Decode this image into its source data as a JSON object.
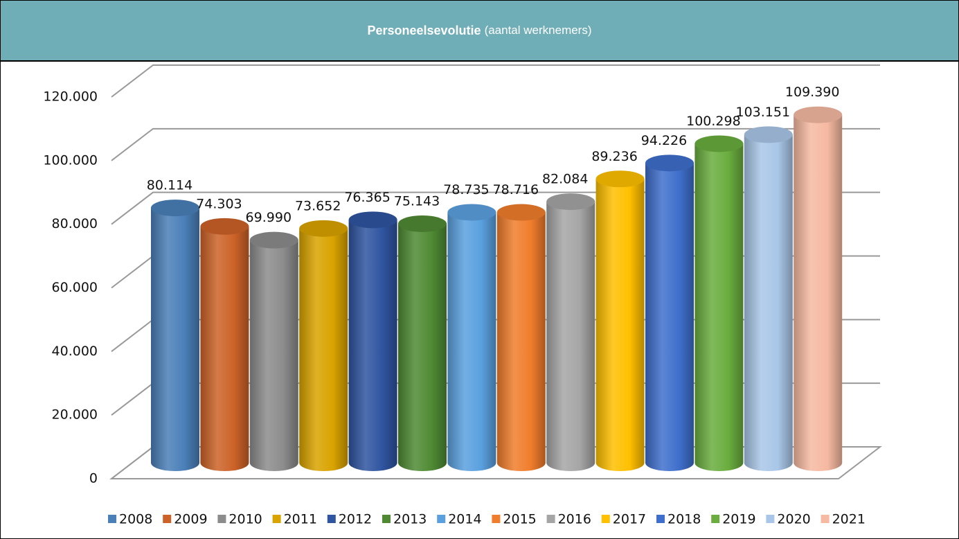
{
  "chart_data": {
    "type": "bar3d",
    "title": "Personeelsevolutie",
    "subtitle": "(aantal werknemers)",
    "ylim": [
      0,
      120000
    ],
    "yticks": [
      0,
      {
        "value": 20000,
        "label": "20.000"
      },
      {
        "value": 40000,
        "label": "40.000"
      },
      {
        "value": 60000,
        "label": "60.000"
      },
      {
        "value": 80000,
        "label": "80.000"
      },
      {
        "value": 100000,
        "label": "100.000"
      },
      {
        "value": 120000,
        "label": "120.000"
      }
    ],
    "grid": true,
    "legend": "bottom",
    "series": [
      {
        "name": "2008",
        "color": "#4a7fb8",
        "values": [
          80114
        ],
        "value_labels": [
          "80.114"
        ]
      },
      {
        "name": "2009",
        "color": "#cc6228",
        "values": [
          74303
        ],
        "value_labels": [
          "74.303"
        ]
      },
      {
        "name": "2010",
        "color": "#8c8c8c",
        "values": [
          69990
        ],
        "value_labels": [
          "69.990"
        ]
      },
      {
        "name": "2011",
        "color": "#d9a300",
        "values": [
          73652
        ],
        "value_labels": [
          "73.652"
        ]
      },
      {
        "name": "2012",
        "color": "#2f54a0",
        "values": [
          76365
        ],
        "value_labels": [
          "76.365"
        ]
      },
      {
        "name": "2013",
        "color": "#4f8a33",
        "values": [
          75143
        ],
        "value_labels": [
          "75.143"
        ]
      },
      {
        "name": "2014",
        "color": "#5aa0df",
        "values": [
          78735
        ],
        "value_labels": [
          "78.735"
        ]
      },
      {
        "name": "2015",
        "color": "#f07d2c",
        "values": [
          78716
        ],
        "value_labels": [
          "78.716"
        ]
      },
      {
        "name": "2016",
        "color": "#a5a5a5",
        "values": [
          82084
        ],
        "value_labels": [
          "82.084"
        ]
      },
      {
        "name": "2017",
        "color": "#ffc000",
        "values": [
          89236
        ],
        "value_labels": [
          "89.236"
        ]
      },
      {
        "name": "2018",
        "color": "#3f6fcc",
        "values": [
          94226
        ],
        "value_labels": [
          "94.226"
        ]
      },
      {
        "name": "2019",
        "color": "#6aad3e",
        "values": [
          100298
        ],
        "value_labels": [
          "100.298"
        ]
      },
      {
        "name": "2020",
        "color": "#a9c6e8",
        "values": [
          103151
        ],
        "value_labels": [
          "103.151"
        ]
      },
      {
        "name": "2021",
        "color": "#f6b9a1",
        "values": [
          109390
        ],
        "value_labels": [
          "109.390"
        ]
      }
    ]
  }
}
